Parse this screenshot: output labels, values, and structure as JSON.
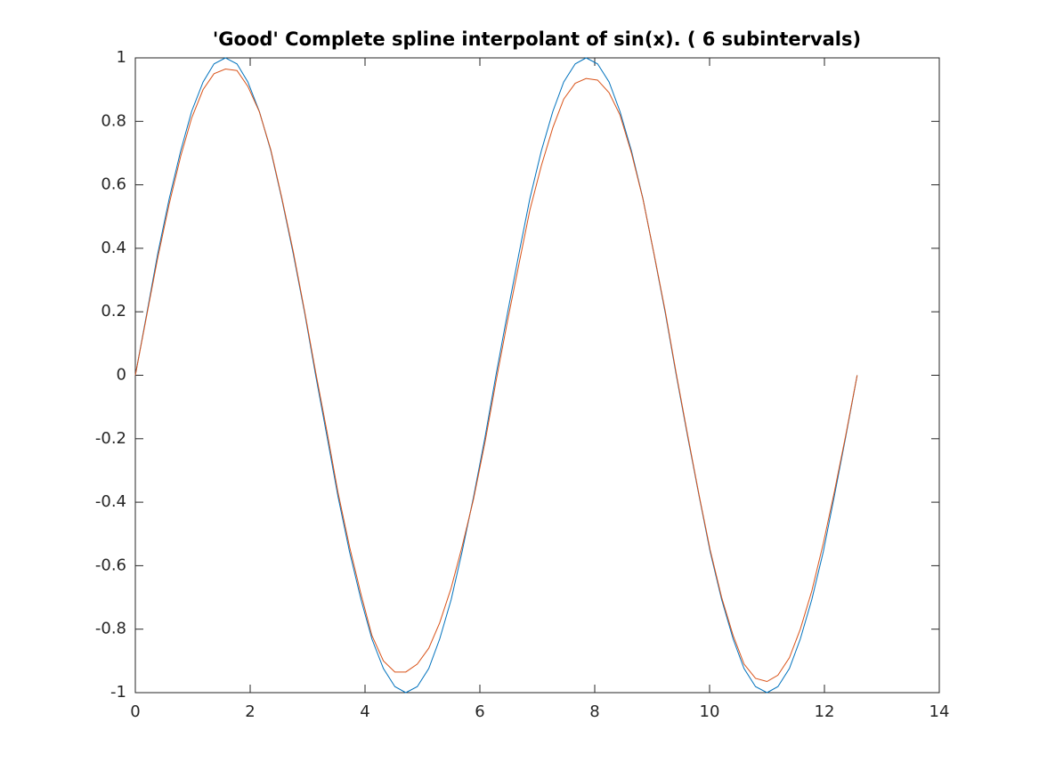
{
  "chart_data": {
    "type": "line",
    "title": "'Good' Complete spline interpolant of sin(x). ( 6 subintervals)",
    "x": [
      0,
      0.2,
      0.39,
      0.59,
      0.79,
      0.98,
      1.18,
      1.37,
      1.57,
      1.77,
      1.96,
      2.16,
      2.36,
      2.55,
      2.75,
      2.95,
      3.14,
      3.34,
      3.53,
      3.73,
      3.93,
      4.12,
      4.32,
      4.52,
      4.71,
      4.91,
      5.11,
      5.3,
      5.5,
      5.69,
      5.89,
      6.09,
      6.28,
      6.48,
      6.68,
      6.87,
      7.07,
      7.27,
      7.46,
      7.66,
      7.85,
      8.05,
      8.25,
      8.44,
      8.64,
      8.84,
      9.03,
      9.23,
      9.42,
      9.62,
      9.82,
      10.01,
      10.21,
      10.41,
      10.6,
      10.8,
      11,
      11.19,
      11.39,
      11.58,
      11.78,
      11.98,
      12.17,
      12.37,
      12.57
    ],
    "series": [
      {
        "color": "#0072bd",
        "values": [
          0,
          0.195,
          0.383,
          0.556,
          0.707,
          0.831,
          0.924,
          0.981,
          1,
          0.981,
          0.924,
          0.831,
          0.707,
          0.556,
          0.383,
          0.195,
          0,
          -0.195,
          -0.383,
          -0.556,
          -0.707,
          -0.831,
          -0.924,
          -0.981,
          -1,
          -0.981,
          -0.924,
          -0.831,
          -0.707,
          -0.556,
          -0.383,
          -0.195,
          0,
          0.195,
          0.383,
          0.556,
          0.707,
          0.831,
          0.924,
          0.981,
          1,
          0.981,
          0.924,
          0.831,
          0.707,
          0.556,
          0.383,
          0.195,
          0,
          -0.195,
          -0.383,
          -0.556,
          -0.707,
          -0.831,
          -0.924,
          -0.981,
          -1,
          -0.981,
          -0.924,
          -0.831,
          -0.707,
          -0.556,
          -0.383,
          -0.195,
          0
        ]
      },
      {
        "color": "#d95319",
        "values": [
          0,
          0.19,
          0.37,
          0.54,
          0.69,
          0.81,
          0.9,
          0.95,
          0.965,
          0.96,
          0.91,
          0.83,
          0.71,
          0.56,
          0.39,
          0.2,
          0.01,
          -0.18,
          -0.37,
          -0.54,
          -0.69,
          -0.82,
          -0.9,
          -0.935,
          -0.935,
          -0.91,
          -0.86,
          -0.78,
          -0.67,
          -0.54,
          -0.39,
          -0.21,
          -0.02,
          0.17,
          0.35,
          0.52,
          0.66,
          0.78,
          0.87,
          0.92,
          0.935,
          0.93,
          0.89,
          0.82,
          0.7,
          0.555,
          0.385,
          0.2,
          0.005,
          -0.19,
          -0.38,
          -0.55,
          -0.7,
          -0.82,
          -0.91,
          -0.955,
          -0.965,
          -0.945,
          -0.89,
          -0.8,
          -0.68,
          -0.53,
          -0.37,
          -0.19,
          0
        ]
      }
    ],
    "xlim": [
      0,
      14
    ],
    "xticks": [
      0,
      2,
      4,
      6,
      8,
      10,
      12,
      14
    ],
    "ylim": [
      -1,
      1
    ],
    "yticks": [
      -1,
      -0.8,
      -0.6,
      -0.4,
      -0.2,
      0,
      0.2,
      0.4,
      0.6,
      0.8,
      1
    ]
  }
}
